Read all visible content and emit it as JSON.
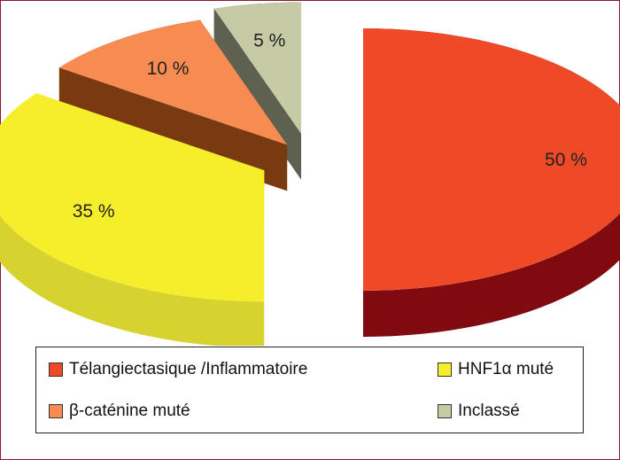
{
  "chart_data": {
    "type": "pie",
    "style": "3d-exploded",
    "slices": [
      {
        "label": "Télangiectasique /Inflammatoire",
        "value": 50,
        "display": "50 %",
        "color": "#ef4a28",
        "side_color": "#7f0a10"
      },
      {
        "label": "HNF1α muté",
        "value": 35,
        "display": "35 %",
        "color": "#f7ee2b",
        "side_color": "#d6d331"
      },
      {
        "label": "β-caténine muté",
        "value": 10,
        "display": "10 %",
        "color": "#f68c52",
        "side_color": "#7a3a10"
      },
      {
        "label": "Inclassé",
        "value": 5,
        "display": "5 %",
        "color": "#c6cba5",
        "side_color": "#5e6150"
      }
    ],
    "legend_position": "bottom"
  },
  "frame_color": "#8a1a2e"
}
